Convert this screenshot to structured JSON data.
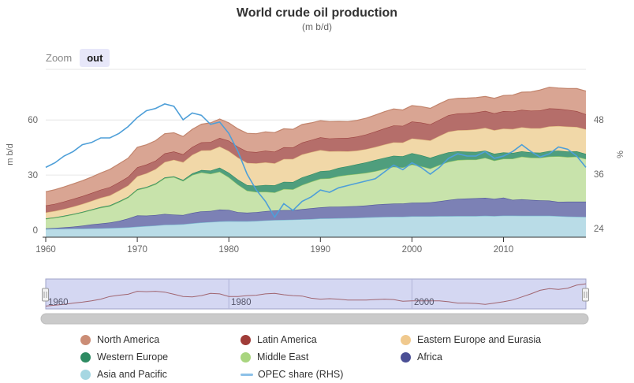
{
  "header": {
    "title": "World crude oil production",
    "subtitle": "(m b/d)"
  },
  "zoom_control": {
    "label": "Zoom",
    "button": "out"
  },
  "navigator": {
    "labels": [
      "1960",
      "1980",
      "2000"
    ],
    "mask_color": "#d4d7f2",
    "outline_color": "#9fa3c8",
    "series_line_color": "#a06570",
    "scrollbar_color": "#cacaca"
  },
  "legend": [
    {
      "id": "north_america",
      "label": "North America",
      "color": "#cb8d76",
      "marker": "circle",
      "row": 0,
      "col": 0
    },
    {
      "id": "latin_america",
      "label": "Latin America",
      "color": "#a03c38",
      "marker": "circle",
      "row": 0,
      "col": 1
    },
    {
      "id": "ee_eurasia",
      "label": "Eastern Europe and Eurasia",
      "color": "#f0c98e",
      "marker": "circle",
      "row": 0,
      "col": 2
    },
    {
      "id": "western_europe",
      "label": "Western Europe",
      "color": "#2e8b62",
      "marker": "circle",
      "row": 1,
      "col": 0
    },
    {
      "id": "middle_east",
      "label": "Middle East",
      "color": "#a9d57f",
      "marker": "circle",
      "row": 1,
      "col": 1
    },
    {
      "id": "africa",
      "label": "Africa",
      "color": "#4b4f95",
      "marker": "circle",
      "row": 1,
      "col": 2
    },
    {
      "id": "asia_pacific",
      "label": "Asia and Pacific",
      "color": "#a6d7e2",
      "marker": "circle",
      "row": 2,
      "col": 0
    },
    {
      "id": "opec_share",
      "label": "OPEC share (RHS)",
      "color": "#8cc1e8",
      "marker": "line",
      "row": 2,
      "col": 1
    }
  ],
  "chart_data": {
    "type": "area",
    "subtype": "stacked-area-with-line",
    "title": "World crude oil production",
    "subtitle": "(m b/d)",
    "x_start": 1960,
    "x_end": 2019,
    "x_ticks": [
      1960,
      1970,
      1980,
      1990,
      2000,
      2010
    ],
    "left_axis": {
      "title": "m b/d",
      "ticks": [
        0,
        30,
        60
      ],
      "range": [
        0,
        90
      ]
    },
    "right_axis": {
      "title": "%",
      "ticks": [
        24,
        36,
        48
      ],
      "range": [
        22,
        60
      ]
    },
    "grid": "horizontal",
    "legend_position": "bottom",
    "series_stacked_bottom_to_top": [
      {
        "name": "Asia and Pacific",
        "fill": "#b9dce7",
        "stroke": "#7fbfd4",
        "values": [
          0.6,
          0.7,
          0.7,
          0.8,
          0.8,
          0.9,
          1.0,
          1.1,
          1.3,
          1.5,
          1.9,
          2.2,
          2.5,
          2.9,
          3.0,
          3.2,
          3.7,
          4.1,
          4.4,
          4.7,
          4.9,
          4.8,
          4.8,
          5.0,
          5.3,
          5.5,
          5.6,
          5.7,
          5.9,
          6.0,
          6.3,
          6.4,
          6.5,
          6.6,
          6.7,
          6.9,
          7.1,
          7.2,
          7.3,
          7.3,
          7.5,
          7.5,
          7.5,
          7.6,
          7.6,
          7.7,
          7.7,
          7.7,
          7.8,
          7.7,
          7.9,
          7.9,
          7.8,
          7.8,
          7.8,
          7.8,
          7.6,
          7.4,
          7.3,
          7.2
        ]
      },
      {
        "name": "Africa",
        "fill": "#7c81b5",
        "stroke": "#51569b",
        "values": [
          0.3,
          0.5,
          0.8,
          1.1,
          1.6,
          2.2,
          2.6,
          3.0,
          3.7,
          4.8,
          6.1,
          5.7,
          5.7,
          5.9,
          5.4,
          5.0,
          5.7,
          6.1,
          6.0,
          6.5,
          6.1,
          5.0,
          4.7,
          4.8,
          5.0,
          5.2,
          5.3,
          5.2,
          5.5,
          5.9,
          6.1,
          6.3,
          6.3,
          6.3,
          6.4,
          6.5,
          6.8,
          7.0,
          7.1,
          7.2,
          7.4,
          7.5,
          7.6,
          8.1,
          8.8,
          9.3,
          9.5,
          9.7,
          9.8,
          9.4,
          9.8,
          8.6,
          9.0,
          8.7,
          8.4,
          8.3,
          7.8,
          8.1,
          8.2,
          8.3
        ]
      },
      {
        "name": "Middle East",
        "fill": "#c8e3ab",
        "stroke": "#8fc463",
        "values": [
          5.2,
          5.5,
          6.0,
          6.6,
          7.2,
          7.8,
          8.6,
          9.0,
          10.3,
          11.4,
          13.9,
          15.2,
          16.8,
          19.5,
          20.5,
          18.6,
          20.6,
          21.2,
          20.3,
          20.6,
          17.8,
          15.0,
          12.0,
          11.0,
          10.6,
          9.8,
          11.5,
          11.3,
          13.2,
          14.5,
          15.6,
          15.5,
          16.6,
          17.2,
          17.5,
          17.8,
          18.2,
          19.1,
          20.1,
          19.6,
          20.8,
          19.8,
          18.4,
          19.8,
          20.8,
          21.2,
          21.2,
          21.0,
          21.8,
          20.8,
          21.2,
          22.4,
          23.2,
          23.0,
          23.2,
          24.0,
          24.8,
          24.3,
          24.5,
          23.2
        ]
      },
      {
        "name": "Western Europe",
        "fill": "#4f9e7d",
        "stroke": "#2e8b62",
        "values": [
          0.3,
          0.3,
          0.3,
          0.3,
          0.3,
          0.4,
          0.4,
          0.4,
          0.4,
          0.4,
          0.4,
          0.4,
          0.4,
          0.4,
          0.4,
          0.6,
          0.9,
          1.3,
          1.7,
          2.2,
          2.5,
          2.7,
          3.0,
          3.3,
          3.7,
          3.9,
          3.9,
          4.0,
          4.1,
          3.9,
          4.1,
          4.2,
          4.5,
          4.7,
          5.3,
          5.7,
          6.1,
          6.1,
          6.0,
          6.1,
          6.2,
          6.0,
          5.9,
          5.5,
          5.2,
          4.7,
          4.3,
          4.2,
          3.9,
          3.7,
          3.4,
          3.1,
          2.9,
          2.8,
          2.8,
          3.0,
          3.0,
          3.0,
          2.9,
          2.8
        ]
      },
      {
        "name": "Eastern Europe and Eurasia",
        "fill": "#f1d8a8",
        "stroke": "#e0b97e",
        "values": [
          3.2,
          3.4,
          3.7,
          4.0,
          4.3,
          4.6,
          5.0,
          5.4,
          5.8,
          6.2,
          7.0,
          7.4,
          7.8,
          8.4,
          9.0,
          9.6,
          10.1,
          10.7,
          11.1,
          11.5,
          11.8,
          12.0,
          12.1,
          12.3,
          12.3,
          12.0,
          12.4,
          12.5,
          12.5,
          12.2,
          11.5,
          10.5,
          9.1,
          8.1,
          7.4,
          7.2,
          7.1,
          7.2,
          7.3,
          7.5,
          8.0,
          8.6,
          9.4,
          10.3,
          11.2,
          11.5,
          11.8,
          12.3,
          12.4,
          12.8,
          13.0,
          13.0,
          13.1,
          13.2,
          13.3,
          13.4,
          13.5,
          13.6,
          13.3,
          13.4
        ]
      },
      {
        "name": "Latin America",
        "fill": "#b56e6a",
        "stroke": "#9c4340",
        "values": [
          3.8,
          3.9,
          4.1,
          4.2,
          4.3,
          4.3,
          4.4,
          4.5,
          4.6,
          4.7,
          4.9,
          4.8,
          4.6,
          4.7,
          4.5,
          4.3,
          4.3,
          4.4,
          4.5,
          4.7,
          5.6,
          5.9,
          6.2,
          6.1,
          6.3,
          6.3,
          6.4,
          6.3,
          6.5,
          6.6,
          6.9,
          7.0,
          7.1,
          7.3,
          7.6,
          8.0,
          8.4,
          8.8,
          9.2,
          9.1,
          9.2,
          9.2,
          8.8,
          8.8,
          9.0,
          9.1,
          9.2,
          9.2,
          9.2,
          9.2,
          9.5,
          9.6,
          9.5,
          9.5,
          9.7,
          9.8,
          9.4,
          9.1,
          8.6,
          8.2
        ]
      },
      {
        "name": "North America",
        "fill": "#d9a593",
        "stroke": "#c2846c",
        "values": [
          7.5,
          7.7,
          7.9,
          8.2,
          8.4,
          8.7,
          9.1,
          9.7,
          10.0,
          10.2,
          10.9,
          10.8,
          10.9,
          10.7,
          10.2,
          9.7,
          9.6,
          9.9,
          10.4,
          10.3,
          9.7,
          9.7,
          9.9,
          10.0,
          10.3,
          10.4,
          10.1,
          9.9,
          9.8,
          9.3,
          9.1,
          9.2,
          9.1,
          8.9,
          8.9,
          8.9,
          9.0,
          9.1,
          9.0,
          8.6,
          8.7,
          8.7,
          8.7,
          8.7,
          8.5,
          8.2,
          8.2,
          8.1,
          7.9,
          8.2,
          8.5,
          8.9,
          9.6,
          10.3,
          11.1,
          11.5,
          11.3,
          11.6,
          12.3,
          12.6
        ]
      }
    ],
    "line_series": {
      "name": "OPEC share (RHS)",
      "axis": "right",
      "color": "#4e9fd8",
      "values": [
        37.5,
        38.5,
        40,
        41,
        42.5,
        43,
        44,
        44,
        45,
        46.5,
        48.5,
        50,
        50.5,
        51.5,
        51,
        48,
        49.5,
        49,
        47,
        47.5,
        45,
        41,
        36,
        32.5,
        30,
        26.5,
        29.5,
        28,
        30,
        31,
        32.5,
        32,
        33,
        33.5,
        34,
        34.5,
        35,
        36.5,
        38,
        37,
        38.5,
        37.5,
        36,
        37.5,
        39.5,
        40.5,
        40,
        40,
        41,
        39.5,
        40,
        41,
        42.5,
        41,
        39.8,
        40.5,
        42,
        41.5,
        40,
        37.5
      ]
    },
    "navigator_series": "North America"
  }
}
